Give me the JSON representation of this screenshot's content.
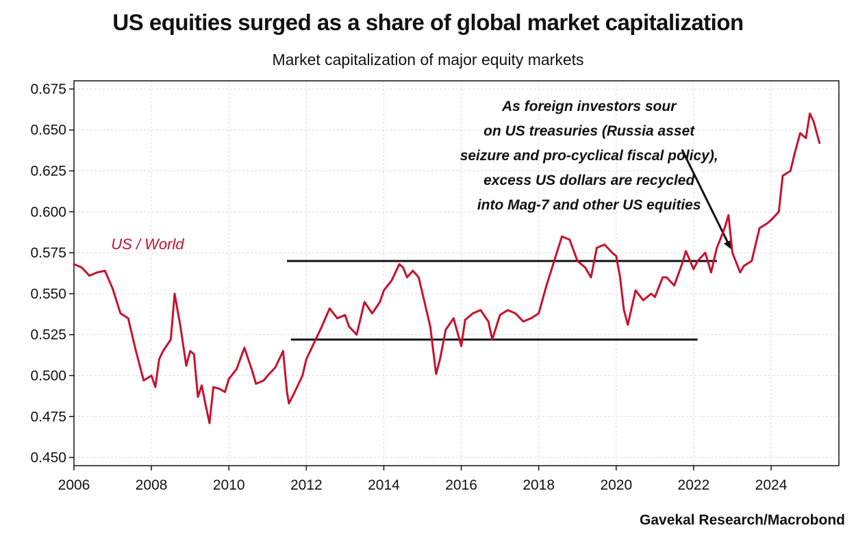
{
  "header": {
    "title": "US equities surged as a share of global market capitalization",
    "subtitle": "Market capitalization of major equity markets"
  },
  "footer": {
    "source": "Gavekal Research/Macrobond"
  },
  "colors": {
    "series": "#c8102e",
    "annotation": "#111111",
    "grid": "#d9d9d9"
  },
  "chart_data": {
    "type": "line",
    "title": "US equities surged as a share of global market capitalization",
    "subtitle": "Market capitalization of major equity markets",
    "xlim": [
      2006.0,
      2025.75
    ],
    "ylim": [
      0.445,
      0.68
    ],
    "x_ticks": [
      2006,
      2008,
      2010,
      2012,
      2014,
      2016,
      2018,
      2020,
      2022,
      2024
    ],
    "y_ticks": [
      0.45,
      0.475,
      0.5,
      0.525,
      0.55,
      0.575,
      0.6,
      0.625,
      0.65,
      0.675
    ],
    "y_tick_labels": [
      "0.450",
      "0.475",
      "0.500",
      "0.525",
      "0.550",
      "0.575",
      "0.600",
      "0.625",
      "0.650",
      "0.675"
    ],
    "grid": true,
    "series": [
      {
        "name": "US / World",
        "x": [
          2006.0,
          2006.2,
          2006.4,
          2006.6,
          2006.8,
          2007.0,
          2007.2,
          2007.4,
          2007.6,
          2007.8,
          2008.0,
          2008.1,
          2008.2,
          2008.3,
          2008.5,
          2008.6,
          2008.75,
          2008.9,
          2009.0,
          2009.1,
          2009.2,
          2009.3,
          2009.4,
          2009.5,
          2009.6,
          2009.75,
          2009.9,
          2010.0,
          2010.2,
          2010.4,
          2010.6,
          2010.7,
          2010.9,
          2011.0,
          2011.2,
          2011.4,
          2011.5,
          2011.55,
          2011.7,
          2011.9,
          2012.0,
          2012.2,
          2012.4,
          2012.6,
          2012.8,
          2013.0,
          2013.1,
          2013.3,
          2013.5,
          2013.7,
          2013.9,
          2014.0,
          2014.2,
          2014.4,
          2014.5,
          2014.6,
          2014.75,
          2014.9,
          2015.0,
          2015.2,
          2015.35,
          2015.45,
          2015.6,
          2015.8,
          2016.0,
          2016.1,
          2016.3,
          2016.5,
          2016.7,
          2016.8,
          2017.0,
          2017.2,
          2017.4,
          2017.6,
          2017.8,
          2018.0,
          2018.2,
          2018.4,
          2018.6,
          2018.8,
          2019.0,
          2019.2,
          2019.35,
          2019.5,
          2019.7,
          2019.9,
          2020.0,
          2020.1,
          2020.2,
          2020.3,
          2020.5,
          2020.7,
          2020.9,
          2021.0,
          2021.2,
          2021.3,
          2021.5,
          2021.7,
          2021.8,
          2022.0,
          2022.1,
          2022.3,
          2022.45,
          2022.6,
          2022.8,
          2022.9,
          2023.0,
          2023.2,
          2023.3,
          2023.5,
          2023.7,
          2023.9,
          2024.0,
          2024.2,
          2024.3,
          2024.5,
          2024.6,
          2024.75,
          2024.9,
          2025.0,
          2025.1,
          2025.25
        ],
        "values": [
          0.568,
          0.566,
          0.561,
          0.563,
          0.564,
          0.553,
          0.538,
          0.535,
          0.515,
          0.497,
          0.5,
          0.493,
          0.51,
          0.515,
          0.522,
          0.55,
          0.53,
          0.506,
          0.515,
          0.513,
          0.487,
          0.494,
          0.482,
          0.471,
          0.493,
          0.492,
          0.49,
          0.498,
          0.504,
          0.517,
          0.503,
          0.495,
          0.497,
          0.5,
          0.505,
          0.515,
          0.49,
          0.483,
          0.49,
          0.5,
          0.51,
          0.52,
          0.53,
          0.541,
          0.535,
          0.537,
          0.53,
          0.525,
          0.545,
          0.538,
          0.545,
          0.552,
          0.558,
          0.568,
          0.566,
          0.56,
          0.564,
          0.56,
          0.55,
          0.53,
          0.501,
          0.51,
          0.528,
          0.535,
          0.518,
          0.534,
          0.538,
          0.54,
          0.533,
          0.522,
          0.537,
          0.54,
          0.538,
          0.533,
          0.535,
          0.538,
          0.555,
          0.57,
          0.585,
          0.583,
          0.57,
          0.566,
          0.56,
          0.578,
          0.58,
          0.575,
          0.573,
          0.56,
          0.54,
          0.531,
          0.552,
          0.546,
          0.55,
          0.548,
          0.56,
          0.56,
          0.555,
          0.568,
          0.576,
          0.565,
          0.57,
          0.575,
          0.563,
          0.578,
          0.59,
          0.598,
          0.575,
          0.563,
          0.567,
          0.57,
          0.59,
          0.593,
          0.595,
          0.6,
          0.622,
          0.625,
          0.635,
          0.648,
          0.645,
          0.66,
          0.655,
          0.642
        ]
      }
    ],
    "annotations": [
      {
        "type": "label",
        "text": "US / World",
        "x": 2007.9,
        "y": 0.5805
      },
      {
        "type": "text",
        "lines": [
          "As foreign investors sour",
          "on US treasuries (Russia asset",
          "seizure and pro-cyclical fiscal policy),",
          "excess US dollars are recycled",
          "into Mag-7 and other US equities"
        ]
      },
      {
        "type": "arrow",
        "from": [
          2021.7,
          0.638
        ],
        "to": [
          2022.95,
          0.578
        ]
      },
      {
        "type": "hline",
        "x0": 2011.5,
        "x1": 2022.6,
        "y": 0.57
      },
      {
        "type": "hline",
        "x0": 2011.6,
        "x1": 2022.1,
        "y": 0.522
      }
    ]
  }
}
